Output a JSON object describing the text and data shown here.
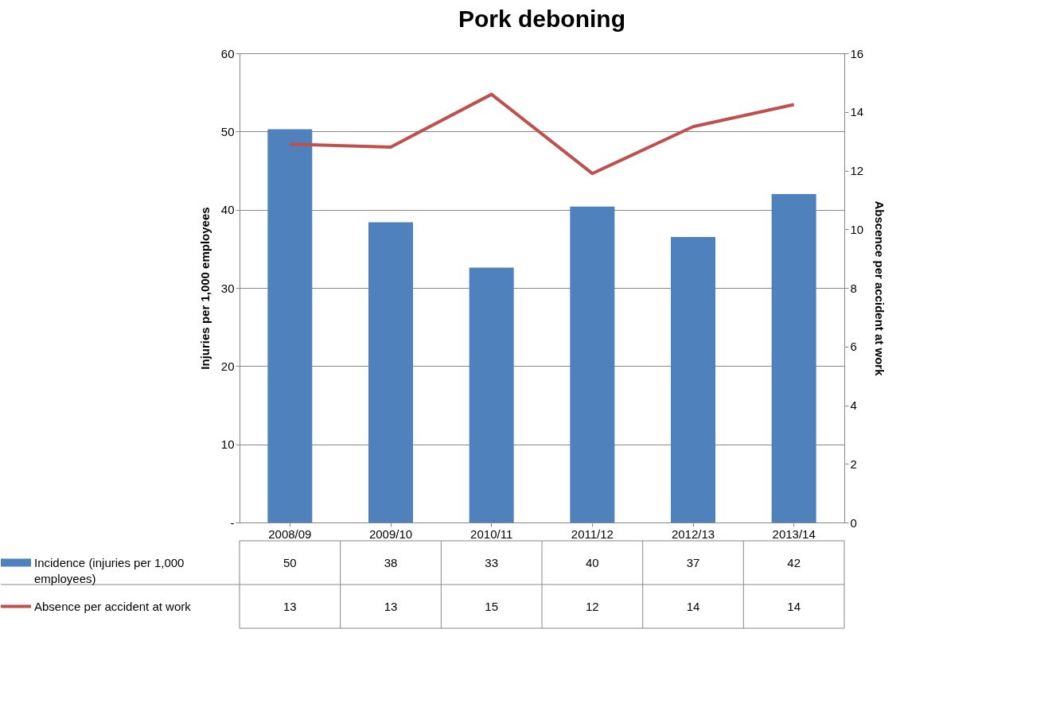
{
  "chart_data": {
    "type": "bar",
    "title": "Pork deboning",
    "categories": [
      "2008/09",
      "2009/10",
      "2010/11",
      "2011/12",
      "2012/13",
      "2013/14"
    ],
    "series": [
      {
        "name": "Incidence (injuries per 1,000 employees)",
        "color": "#4f81bd",
        "values": [
          50.3,
          38.4,
          32.6,
          40.4,
          36.5,
          42.0
        ],
        "value_labels": [
          "50",
          "38",
          "33",
          "40",
          "37",
          "42"
        ]
      },
      {
        "name": "Absence per accident at work",
        "type": "line",
        "axis": "y2",
        "color": "#c0504d",
        "values": [
          12.9,
          12.8,
          14.6,
          11.9,
          13.5,
          14.25
        ],
        "value_labels": [
          "13",
          "13",
          "15",
          "12",
          "14",
          "14"
        ]
      }
    ],
    "ylabel": "Injuries per 1,000 employees",
    "y2label": "Abscence per accident at work",
    "ylim": [
      0,
      60
    ],
    "yticks": [
      {
        "value": 0,
        "label": "-"
      },
      10,
      20,
      30,
      40,
      50,
      60
    ],
    "y2lim": [
      0,
      16
    ],
    "y2ticks": [
      0,
      2,
      4,
      6,
      8,
      10,
      12,
      14,
      16
    ],
    "grid": "y",
    "legend": "bottom left",
    "marker": "none",
    "line_style": "solid"
  }
}
